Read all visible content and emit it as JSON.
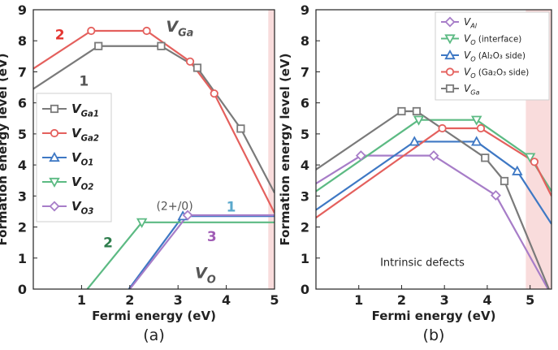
{
  "chart_data": [
    {
      "type": "line",
      "panel_label": "(a)",
      "xlabel": "Fermi energy (eV)",
      "ylabel": "Formation energy level (eV)",
      "xlim": [
        0,
        5
      ],
      "ylim": [
        0,
        9
      ],
      "xticks": [
        1,
        2,
        3,
        4,
        5
      ],
      "yticks": [
        0,
        1,
        2,
        3,
        4,
        5,
        6,
        7,
        8,
        9
      ],
      "grid": false,
      "legend_position": "left",
      "shaded_band": {
        "x": [
          4.87,
          5
        ],
        "color": "#f9dcdc"
      },
      "series": [
        {
          "name": "VGa1",
          "label_main": "V",
          "label_sub": "Ga1",
          "color": "#7a7a7a",
          "marker": "square",
          "x": [
            0,
            1.35,
            2.65,
            3.4,
            4.3,
            5.0
          ],
          "y": [
            6.45,
            7.83,
            7.83,
            7.13,
            5.17,
            3.1
          ],
          "marker_x": [
            1.35,
            2.65,
            3.4,
            4.3
          ]
        },
        {
          "name": "VGa2",
          "label_main": "V",
          "label_sub": "Ga2",
          "color": "#e4605d",
          "marker": "circle",
          "x": [
            0,
            1.2,
            2.35,
            3.25,
            3.75,
            5.0
          ],
          "y": [
            7.1,
            8.32,
            8.32,
            7.33,
            6.3,
            2.45
          ],
          "marker_x": [
            1.2,
            2.35,
            3.25,
            3.75
          ]
        },
        {
          "name": "VO1",
          "label_main": "V",
          "label_sub": "O1",
          "color": "#3e78c4",
          "marker": "triangle-up",
          "x": [
            1.98,
            3.1,
            5.0
          ],
          "y": [
            0,
            2.35,
            2.35
          ],
          "marker_x": [
            3.1
          ]
        },
        {
          "name": "VO2",
          "label_main": "V",
          "label_sub": "O2",
          "color": "#5cba83",
          "marker": "triangle-down",
          "x": [
            1.12,
            2.25,
            5.0
          ],
          "y": [
            0,
            2.15,
            2.15
          ],
          "marker_x": [
            2.25
          ]
        },
        {
          "name": "VO3",
          "label_main": "V",
          "label_sub": "O3",
          "color": "#a77dc8",
          "marker": "diamond",
          "x": [
            2.0,
            3.2,
            5.0
          ],
          "y": [
            0,
            2.38,
            2.38
          ],
          "marker_x": [
            3.2
          ]
        }
      ],
      "annotations": [
        {
          "text": "2",
          "x": 0.45,
          "y": 8.05,
          "color": "#e4342f",
          "size": 17,
          "weight": "bold"
        },
        {
          "text": "1",
          "x": 0.95,
          "y": 6.55,
          "color": "#555555",
          "size": 17,
          "weight": "bold"
        },
        {
          "text": "V",
          "sub": "Ga",
          "x": 2.75,
          "y": 8.3,
          "color": "#555555",
          "size": 19,
          "weight": "bold",
          "italic": true
        },
        {
          "text": "(2+/0)",
          "x": 2.55,
          "y": 2.55,
          "color": "#555555",
          "size": 14,
          "weight": "normal"
        },
        {
          "text": "1",
          "x": 4.0,
          "y": 2.5,
          "color": "#5aa8cc",
          "size": 17,
          "weight": "bold"
        },
        {
          "text": "2",
          "x": 1.45,
          "y": 1.35,
          "color": "#2e7d4c",
          "size": 17,
          "weight": "bold"
        },
        {
          "text": "3",
          "x": 3.6,
          "y": 1.55,
          "color": "#a05cb5",
          "size": 17,
          "weight": "bold"
        },
        {
          "text": "V",
          "sub": "O",
          "x": 3.35,
          "y": 0.35,
          "color": "#555555",
          "size": 19,
          "weight": "bold",
          "italic": true
        }
      ]
    },
    {
      "type": "line",
      "panel_label": "(b)",
      "xlabel": "Fermi energy (eV)",
      "ylabel": "Formation energy level (eV)",
      "xlim": [
        0,
        5.5
      ],
      "ylim": [
        0,
        9
      ],
      "xticks": [
        1,
        2,
        3,
        4,
        5
      ],
      "yticks": [
        0,
        1,
        2,
        3,
        4,
        5,
        6,
        7,
        8,
        9
      ],
      "grid": false,
      "legend_position": "top-right",
      "shaded_band": {
        "x": [
          4.9,
          5.5
        ],
        "color": "#f9dcdc"
      },
      "text_annotation": {
        "text": "Intrinsic defects",
        "x": 1.5,
        "y": 0.75
      },
      "series": [
        {
          "name": "VAl",
          "label_main": "V",
          "label_sub": "Al",
          "label_tail": "",
          "color": "#a77dc8",
          "marker": "diamond",
          "x": [
            0,
            1.05,
            2.75,
            4.2,
            5.5
          ],
          "y": [
            3.4,
            4.3,
            4.3,
            3.02,
            -0.2
          ],
          "marker_x": [
            1.05,
            2.75,
            4.2
          ]
        },
        {
          "name": "VO (interface)",
          "label_main": "V",
          "label_sub": "O",
          "label_tail": " (interface)",
          "color": "#5cba83",
          "marker": "triangle-down",
          "x": [
            0,
            2.4,
            3.75,
            5.0,
            5.5
          ],
          "y": [
            3.15,
            5.45,
            5.45,
            4.25,
            3.15
          ],
          "marker_x": [
            2.4,
            3.75,
            5.0
          ]
        },
        {
          "name": "VO (Al2O3 side)",
          "label_main": "V",
          "label_sub": "O",
          "label_tail": " (Al₂O₃ side)",
          "color": "#3e78c4",
          "marker": "triangle-up",
          "x": [
            0,
            2.3,
            3.75,
            4.7,
            5.5
          ],
          "y": [
            2.55,
            4.75,
            4.75,
            3.8,
            2.1
          ],
          "marker_x": [
            2.3,
            3.75,
            4.7
          ]
        },
        {
          "name": "VO (Ga2O3 side)",
          "label_main": "V",
          "label_sub": "O",
          "label_tail": " (Ga₂O₃ side)",
          "color": "#e4605d",
          "marker": "circle",
          "x": [
            0,
            2.95,
            3.85,
            5.1,
            5.5
          ],
          "y": [
            2.3,
            5.18,
            5.18,
            4.1,
            3.0
          ],
          "marker_x": [
            2.95,
            3.85,
            5.1
          ]
        },
        {
          "name": "VGa",
          "label_main": "V",
          "label_sub": "Ga",
          "label_tail": "",
          "color": "#7a7a7a",
          "marker": "square",
          "x": [
            0,
            2.0,
            2.35,
            3.95,
            4.4,
            5.5
          ],
          "y": [
            3.85,
            5.73,
            5.73,
            4.23,
            3.48,
            -0.2
          ],
          "marker_x": [
            2.0,
            2.35,
            3.95,
            4.4
          ]
        }
      ]
    }
  ]
}
